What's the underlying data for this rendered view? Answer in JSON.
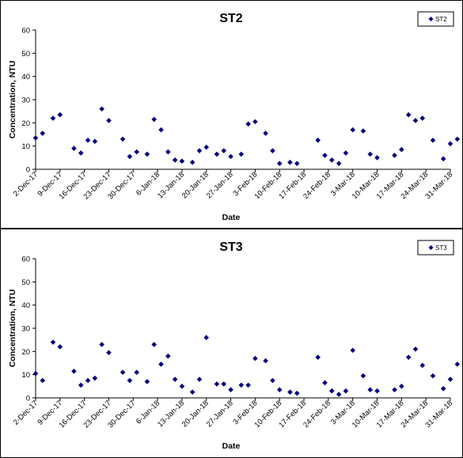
{
  "colors": {
    "marker": "#000080",
    "axis": "#000000",
    "background": "#ffffff"
  },
  "chart_data": [
    {
      "type": "scatter",
      "title": "ST2",
      "xlabel": "Date",
      "ylabel": "Concentration, NTU",
      "ylim": [
        0,
        60
      ],
      "yticks": [
        0,
        10,
        20,
        30,
        40,
        50,
        60
      ],
      "xlim": [
        "2017-12-02",
        "2018-03-31"
      ],
      "xticks": [
        "2-Dec-17",
        "9-Dec-17",
        "16-Dec-17",
        "23-Dec-17",
        "30-Dec-17",
        "6-Jan-18",
        "13-Jan-18",
        "20-Jan-18",
        "27-Jan-18",
        "3-Feb-18",
        "10-Feb-18",
        "17-Feb-18",
        "24-Feb-18",
        "3-Mar-18",
        "10-Mar-18",
        "17-Mar-18",
        "24-Mar-18",
        "31-Mar-18"
      ],
      "grid": false,
      "legend": "top-right",
      "marker": "diamond",
      "series": [
        {
          "name": "ST2",
          "points": [
            {
              "x": "2017-12-02",
              "y": 13.5
            },
            {
              "x": "2017-12-04",
              "y": 15.5
            },
            {
              "x": "2017-12-07",
              "y": 22
            },
            {
              "x": "2017-12-09",
              "y": 23.5
            },
            {
              "x": "2017-12-13",
              "y": 9
            },
            {
              "x": "2017-12-15",
              "y": 7
            },
            {
              "x": "2017-12-17",
              "y": 12.5
            },
            {
              "x": "2017-12-19",
              "y": 12
            },
            {
              "x": "2017-12-21",
              "y": 26
            },
            {
              "x": "2017-12-23",
              "y": 21
            },
            {
              "x": "2017-12-27",
              "y": 13
            },
            {
              "x": "2017-12-29",
              "y": 5.5
            },
            {
              "x": "2017-12-31",
              "y": 7.5
            },
            {
              "x": "2018-01-03",
              "y": 6.5
            },
            {
              "x": "2018-01-05",
              "y": 21.5
            },
            {
              "x": "2018-01-07",
              "y": 17
            },
            {
              "x": "2018-01-09",
              "y": 7.5
            },
            {
              "x": "2018-01-11",
              "y": 4
            },
            {
              "x": "2018-01-13",
              "y": 3.5
            },
            {
              "x": "2018-01-16",
              "y": 3
            },
            {
              "x": "2018-01-18",
              "y": 8
            },
            {
              "x": "2018-01-20",
              "y": 9.5
            },
            {
              "x": "2018-01-23",
              "y": 6.5
            },
            {
              "x": "2018-01-25",
              "y": 8
            },
            {
              "x": "2018-01-27",
              "y": 5.5
            },
            {
              "x": "2018-01-30",
              "y": 6.5
            },
            {
              "x": "2018-02-01",
              "y": 19.5
            },
            {
              "x": "2018-02-03",
              "y": 20.5
            },
            {
              "x": "2018-02-06",
              "y": 15.5
            },
            {
              "x": "2018-02-08",
              "y": 8
            },
            {
              "x": "2018-02-10",
              "y": 2.5
            },
            {
              "x": "2018-02-13",
              "y": 3
            },
            {
              "x": "2018-02-15",
              "y": 2.5
            },
            {
              "x": "2018-02-21",
              "y": 12.5
            },
            {
              "x": "2018-02-23",
              "y": 6
            },
            {
              "x": "2018-02-25",
              "y": 4
            },
            {
              "x": "2018-02-27",
              "y": 2.5
            },
            {
              "x": "2018-03-01",
              "y": 7
            },
            {
              "x": "2018-03-03",
              "y": 17
            },
            {
              "x": "2018-03-06",
              "y": 16.5
            },
            {
              "x": "2018-03-08",
              "y": 6.5
            },
            {
              "x": "2018-03-10",
              "y": 5
            },
            {
              "x": "2018-03-15",
              "y": 6
            },
            {
              "x": "2018-03-17",
              "y": 8.5
            },
            {
              "x": "2018-03-19",
              "y": 23.5
            },
            {
              "x": "2018-03-21",
              "y": 21
            },
            {
              "x": "2018-03-23",
              "y": 22
            },
            {
              "x": "2018-03-26",
              "y": 12.5
            },
            {
              "x": "2018-03-29",
              "y": 4.5
            },
            {
              "x": "2018-03-31",
              "y": 11
            },
            {
              "x": "2018-04-02",
              "y": 13
            }
          ]
        }
      ]
    },
    {
      "type": "scatter",
      "title": "ST3",
      "xlabel": "Date",
      "ylabel": "Concentration, NTU",
      "ylim": [
        0,
        60
      ],
      "yticks": [
        0,
        10,
        20,
        30,
        40,
        50,
        60
      ],
      "xlim": [
        "2017-12-02",
        "2018-03-31"
      ],
      "xticks": [
        "2-Dec-17",
        "9-Dec-17",
        "16-Dec-17",
        "23-Dec-17",
        "30-Dec-17",
        "6-Jan-18",
        "13-Jan-18",
        "20-Jan-18",
        "27-Jan-18",
        "3-Feb-18",
        "10-Feb-18",
        "17-Feb-18",
        "24-Feb-18",
        "3-Mar-18",
        "10-Mar-18",
        "17-Mar-18",
        "24-Mar-18",
        "31-Mar-18"
      ],
      "grid": false,
      "legend": "top-right",
      "marker": "diamond",
      "series": [
        {
          "name": "ST3",
          "points": [
            {
              "x": "2017-12-02",
              "y": 10.5
            },
            {
              "x": "2017-12-04",
              "y": 7.5
            },
            {
              "x": "2017-12-07",
              "y": 24
            },
            {
              "x": "2017-12-09",
              "y": 22
            },
            {
              "x": "2017-12-13",
              "y": 11.5
            },
            {
              "x": "2017-12-15",
              "y": 5.5
            },
            {
              "x": "2017-12-17",
              "y": 7.5
            },
            {
              "x": "2017-12-19",
              "y": 8.5
            },
            {
              "x": "2017-12-21",
              "y": 23
            },
            {
              "x": "2017-12-23",
              "y": 19.5
            },
            {
              "x": "2017-12-27",
              "y": 11
            },
            {
              "x": "2017-12-29",
              "y": 7.5
            },
            {
              "x": "2017-12-31",
              "y": 11
            },
            {
              "x": "2018-01-03",
              "y": 7
            },
            {
              "x": "2018-01-05",
              "y": 23
            },
            {
              "x": "2018-01-07",
              "y": 14.5
            },
            {
              "x": "2018-01-09",
              "y": 18
            },
            {
              "x": "2018-01-11",
              "y": 8
            },
            {
              "x": "2018-01-13",
              "y": 5
            },
            {
              "x": "2018-01-16",
              "y": 2.5
            },
            {
              "x": "2018-01-18",
              "y": 8
            },
            {
              "x": "2018-01-20",
              "y": 26
            },
            {
              "x": "2018-01-23",
              "y": 6
            },
            {
              "x": "2018-01-25",
              "y": 6
            },
            {
              "x": "2018-01-27",
              "y": 3.5
            },
            {
              "x": "2018-01-30",
              "y": 5.5
            },
            {
              "x": "2018-02-01",
              "y": 5.5
            },
            {
              "x": "2018-02-03",
              "y": 17
            },
            {
              "x": "2018-02-06",
              "y": 16
            },
            {
              "x": "2018-02-08",
              "y": 7.5
            },
            {
              "x": "2018-02-10",
              "y": 3.5
            },
            {
              "x": "2018-02-13",
              "y": 2.5
            },
            {
              "x": "2018-02-15",
              "y": 2
            },
            {
              "x": "2018-02-21",
              "y": 17.5
            },
            {
              "x": "2018-02-23",
              "y": 6.5
            },
            {
              "x": "2018-02-25",
              "y": 3
            },
            {
              "x": "2018-02-27",
              "y": 1.5
            },
            {
              "x": "2018-03-01",
              "y": 3
            },
            {
              "x": "2018-03-03",
              "y": 20.5
            },
            {
              "x": "2018-03-06",
              "y": 9.5
            },
            {
              "x": "2018-03-08",
              "y": 3.5
            },
            {
              "x": "2018-03-10",
              "y": 3
            },
            {
              "x": "2018-03-15",
              "y": 3.5
            },
            {
              "x": "2018-03-17",
              "y": 5
            },
            {
              "x": "2018-03-19",
              "y": 17.5
            },
            {
              "x": "2018-03-21",
              "y": 21
            },
            {
              "x": "2018-03-23",
              "y": 14
            },
            {
              "x": "2018-03-26",
              "y": 9.5
            },
            {
              "x": "2018-03-29",
              "y": 4
            },
            {
              "x": "2018-03-31",
              "y": 8
            },
            {
              "x": "2018-04-02",
              "y": 14.5
            }
          ]
        }
      ]
    }
  ]
}
